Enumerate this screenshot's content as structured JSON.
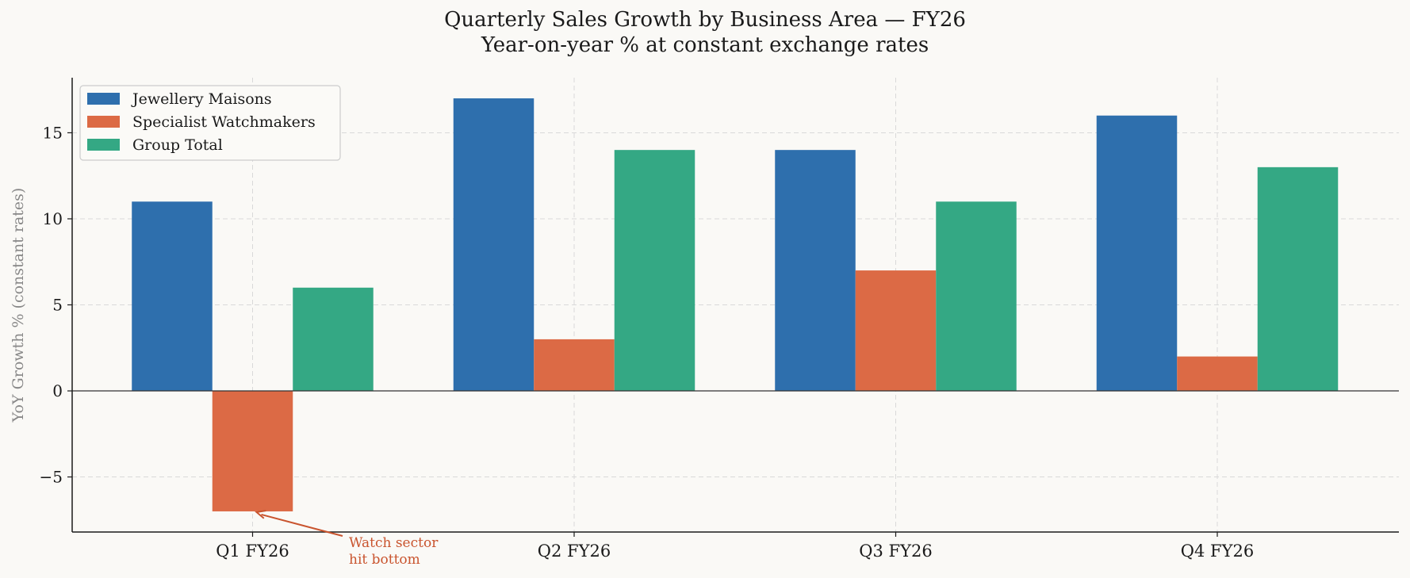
{
  "chart_data": {
    "type": "bar",
    "title": "Quarterly Sales Growth by Business Area — FY26",
    "subtitle": "Year-on-year % at constant exchange rates",
    "xlabel": "",
    "ylabel": "YoY Growth % (constant rates)",
    "categories": [
      "Q1 FY26",
      "Q2 FY26",
      "Q3 FY26",
      "Q4 FY26"
    ],
    "series": [
      {
        "name": "Jewellery Maisons",
        "color": "#2e6fad",
        "values": [
          11,
          17,
          14,
          16
        ]
      },
      {
        "name": "Specialist Watchmakers",
        "color": "#dc6a45",
        "values": [
          -7,
          3,
          7,
          2
        ]
      },
      {
        "name": "Group Total",
        "color": "#34a884",
        "values": [
          6,
          14,
          11,
          13
        ]
      }
    ],
    "ylim": [
      -8.2,
      18.2
    ],
    "yticks": [
      -5,
      0,
      5,
      10,
      15
    ],
    "ytick_labels": [
      "−5",
      "0",
      "5",
      "10",
      "15"
    ],
    "grid": true,
    "legend_position": "top-left",
    "annotation": {
      "text_lines": [
        "Watch sector",
        "hit bottom"
      ],
      "category": "Q1 FY26",
      "series": "Specialist Watchmakers",
      "value": -7,
      "color": "#c9542e"
    }
  }
}
